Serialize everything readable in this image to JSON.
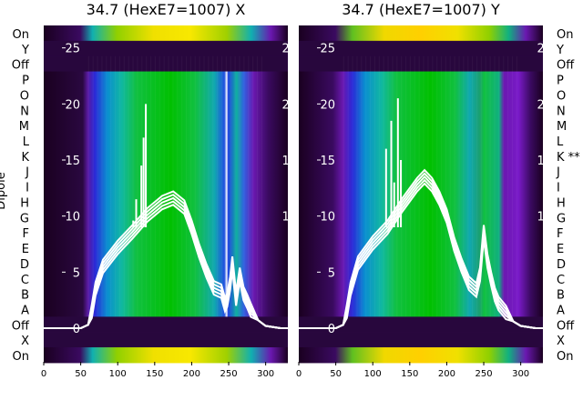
{
  "chart_data": {
    "type": "heatmap",
    "ylabel": "Dipole",
    "dipole_labels": [
      "On",
      "Y",
      "Off",
      "P",
      "O",
      "N",
      "M",
      "L",
      "K",
      "J",
      "I",
      "H",
      "G",
      "F",
      "E",
      "D",
      "C",
      "B",
      "A",
      "Off",
      "X",
      "On"
    ],
    "x_ticks": [
      0,
      50,
      100,
      150,
      200,
      250,
      300
    ],
    "y_ticks": [
      0,
      5,
      10,
      15,
      20,
      25
    ],
    "xlim": [
      0,
      330
    ],
    "ylim": [
      -3,
      27
    ],
    "panels": [
      {
        "title": "34.7 (HexE7=1007) X",
        "right_labels": [],
        "heatmap_colormap": [
          "#1a0020",
          "#3b0a55",
          "#4b0a8a",
          "#3a10c8",
          "#1a4fe0",
          "#1aa8c8",
          "#10c060",
          "#00c400",
          "#70d000",
          "#e8e000",
          "#ffd000"
        ],
        "spectrum_curves": [
          {
            "x": [
              0,
              30,
              50,
              60,
              65,
              70,
              80,
              100,
              120,
              140,
              160,
              175,
              190,
              200,
              210,
              220,
              230,
              240,
              245,
              248,
              252,
              255,
              260,
              265,
              270,
              275,
              280,
              290,
              300,
              320,
              330
            ],
            "y": [
              0,
              0,
              0,
              0.3,
              1.5,
              3.5,
              5.5,
              7.2,
              8.6,
              10.1,
              11.2,
              11.6,
              10.8,
              9.0,
              6.9,
              5.1,
              3.6,
              3.3,
              2.1,
              2.5,
              4.0,
              5.8,
              2.6,
              4.8,
              3.1,
              2.4,
              1.6,
              0.7,
              0.2,
              0,
              0
            ]
          }
        ],
        "spikes": [
          {
            "x": 121,
            "y_top": 9.6
          },
          {
            "x": 132,
            "y_top": 14.5
          },
          {
            "x": 135,
            "y_top": 17.0
          },
          {
            "x": 138,
            "y_top": 20.0
          },
          {
            "x": 125,
            "y_top": 11.5
          }
        ]
      },
      {
        "title": "34.7 (HexE7=1007) Y",
        "right_labels": [
          "On",
          "Y",
          "Off",
          "P",
          "O",
          "N",
          "M",
          "L",
          "K **",
          "J",
          "I",
          "H",
          "G",
          "F",
          "E",
          "D",
          "C",
          "B",
          "A",
          "Off",
          "X",
          "On"
        ],
        "heatmap_colormap": [
          "#1a0020",
          "#3b0a55",
          "#4b0a8a",
          "#3a10c8",
          "#1a4fe0",
          "#1aa8c8",
          "#10c060",
          "#00c400",
          "#70d000",
          "#e8e000",
          "#ffd000"
        ],
        "spectrum_curves": [
          {
            "x": [
              0,
              30,
              50,
              60,
              65,
              70,
              80,
              100,
              120,
              140,
              160,
              170,
              180,
              190,
              200,
              210,
              220,
              230,
              240,
              245,
              250,
              255,
              260,
              265,
              270,
              280,
              290,
              300,
              320,
              330
            ],
            "y": [
              0,
              0,
              0,
              0.3,
              1.5,
              3.5,
              5.8,
              7.6,
              9.0,
              11.0,
              12.8,
              13.5,
              12.8,
              11.6,
              10.0,
              7.5,
              5.6,
              4.0,
              3.4,
              4.8,
              8.6,
              6.0,
              4.4,
              3.0,
              2.2,
              1.4,
              0.6,
              0.2,
              0,
              0
            ]
          }
        ],
        "spikes": [
          {
            "x": 118,
            "y_top": 16.0
          },
          {
            "x": 125,
            "y_top": 18.5
          },
          {
            "x": 134,
            "y_top": 20.5
          },
          {
            "x": 138,
            "y_top": 15.0
          },
          {
            "x": 129,
            "y_top": 13.0
          }
        ]
      }
    ]
  }
}
